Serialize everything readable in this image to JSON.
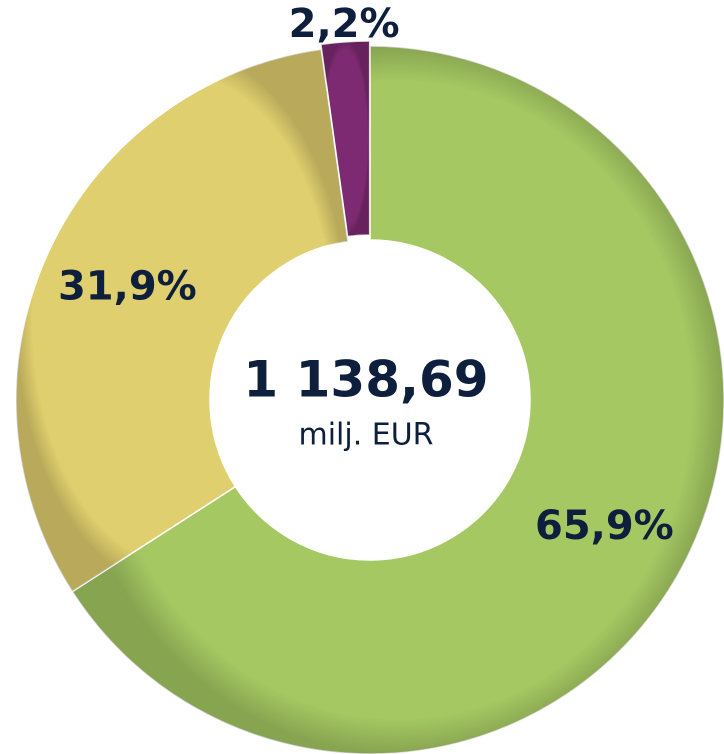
{
  "chart_data": {
    "type": "donut",
    "values": [
      65.9,
      31.9,
      2.2
    ],
    "value_labels": [
      "65,9%",
      "31,9%",
      "2,2%"
    ],
    "colors": [
      "#a5c862",
      "#e0cf6e",
      "#7e2a72"
    ],
    "center_label": "1 138,69",
    "center_sublabel": "milj. EUR"
  }
}
